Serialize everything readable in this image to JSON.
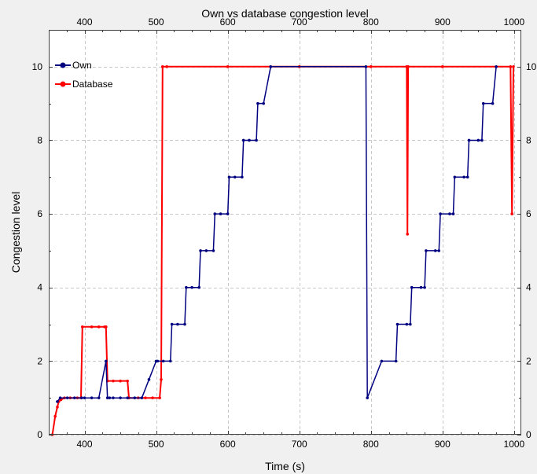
{
  "chart_data": {
    "type": "line",
    "title": "Own vs database congestion level",
    "xlabel": "Time (s)",
    "ylabel": "Congestion level",
    "xlim": [
      350,
      1010
    ],
    "ylim": [
      0,
      11
    ],
    "x_ticks": [
      400,
      500,
      600,
      700,
      800,
      900,
      1000
    ],
    "x_tick_labels": [
      "400",
      "500",
      "600",
      "700",
      "800",
      "900",
      "1000"
    ],
    "y_ticks": [
      0,
      2,
      4,
      6,
      8,
      10
    ],
    "y_tick_labels": [
      "0",
      "2",
      "4",
      "6",
      "8",
      "10"
    ],
    "grid": true,
    "legend_position": "top-left",
    "series": [
      {
        "name": "Own",
        "color": "#000080",
        "x": [
          362,
          366,
          376,
          386,
          396,
          400,
          410,
          420,
          430,
          432,
          435,
          440,
          450,
          460,
          470,
          480,
          490,
          500,
          502,
          510,
          520,
          522,
          530,
          540,
          542,
          550,
          560,
          562,
          570,
          580,
          582,
          590,
          600,
          602,
          610,
          620,
          622,
          630,
          640,
          642,
          650,
          660,
          793,
          795,
          815,
          835,
          837,
          850,
          855,
          857,
          870,
          875,
          877,
          890,
          895,
          897,
          910,
          915,
          917,
          930,
          935,
          937,
          950,
          955,
          957,
          970,
          975
        ],
        "y": [
          0.9,
          1,
          1,
          1,
          1,
          1,
          1,
          1,
          2,
          1,
          1,
          1,
          1,
          1,
          1,
          1,
          1.5,
          2,
          2,
          2,
          2,
          3,
          3,
          3,
          4,
          4,
          4,
          5,
          5,
          5,
          6,
          6,
          6,
          7,
          7,
          7,
          8,
          8,
          8,
          9,
          9,
          10,
          10,
          1,
          2,
          2,
          3,
          3,
          3,
          4,
          4,
          4,
          5,
          5,
          5,
          6,
          6,
          6,
          7,
          7,
          7,
          8,
          8,
          8,
          9,
          9,
          10
        ]
      },
      {
        "name": "Database",
        "color": "#ff0000",
        "x": [
          355,
          359,
          362,
          364,
          367,
          372,
          380,
          390,
          395,
          397,
          410,
          420,
          428,
          430,
          432,
          440,
          450,
          460,
          462,
          475,
          485,
          495,
          505,
          507,
          509,
          515,
          600,
          700,
          800,
          850,
          851,
          852,
          900,
          995,
          997,
          999
        ],
        "y": [
          0,
          0.5,
          0.75,
          0.9,
          0.95,
          1,
          1,
          1,
          1,
          2.93,
          2.93,
          2.93,
          2.93,
          2.93,
          1.46,
          1.46,
          1.46,
          1.46,
          1,
          1,
          1,
          1,
          1,
          1.5,
          10,
          10,
          10,
          10,
          10,
          10,
          5.45,
          10,
          10,
          10,
          6,
          10
        ]
      }
    ]
  }
}
